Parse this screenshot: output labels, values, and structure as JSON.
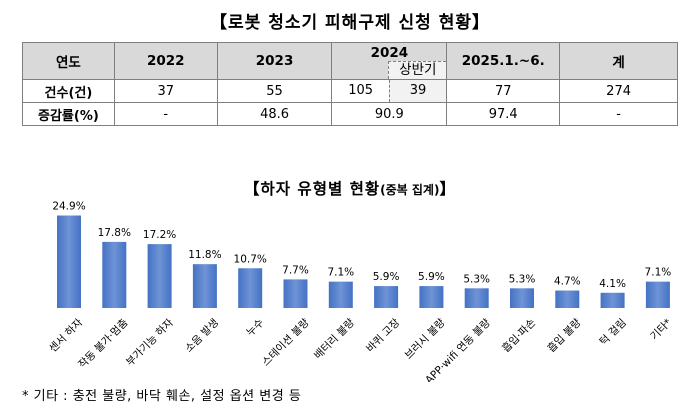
{
  "table": {
    "title": "【로봇 청소기 피해구제 신청 현황】",
    "header": {
      "label": "연도",
      "y2022": "2022",
      "y2023": "2023",
      "y2024": "2024",
      "y2024_half": "상반기",
      "y2025": "2025.1.~6.",
      "total": "계"
    },
    "rows": [
      {
        "label": "건수(건)",
        "y2022": "37",
        "y2023": "55",
        "y2024": "105",
        "y2024_half": "39",
        "y2025": "77",
        "total": "274"
      },
      {
        "label": "증감률(%)",
        "y2022": "-",
        "y2023": "48.6",
        "y2024": "90.9",
        "y2025": "97.4",
        "total": "-"
      }
    ]
  },
  "chart_title": "【하자 유형별 현황",
  "chart_subtitle": "(중복 집계)",
  "chart_title_end": "】",
  "chart_data": {
    "type": "bar",
    "categories": [
      "센서 하자",
      "작동 불가·멈춤",
      "부가기능 하자",
      "소음 발생",
      "누수",
      "스테이션 불량",
      "배터리 불량",
      "바퀴 고장",
      "브러시 불량",
      "APP·wifi 연동 불량",
      "흡입·파손",
      "흡입 불량",
      "턱 걸림",
      "기타*"
    ],
    "values": [
      24.9,
      17.8,
      17.2,
      11.8,
      10.7,
      7.7,
      7.1,
      5.9,
      5.9,
      5.3,
      5.3,
      4.7,
      4.1,
      7.1
    ],
    "value_labels": [
      "24.9%",
      "17.8%",
      "17.2%",
      "11.8%",
      "10.7%",
      "7.7%",
      "7.1%",
      "5.9%",
      "5.9%",
      "5.3%",
      "5.3%",
      "4.7%",
      "4.1%",
      "7.1%"
    ],
    "ylim": [
      0,
      28
    ],
    "bar_color": "#4472c4",
    "bar_color_light": "#6f93d6",
    "grid": false
  },
  "footnote": "* 기타 : 충전 불량, 바닥 훼손, 설정 옵션 변경 등"
}
